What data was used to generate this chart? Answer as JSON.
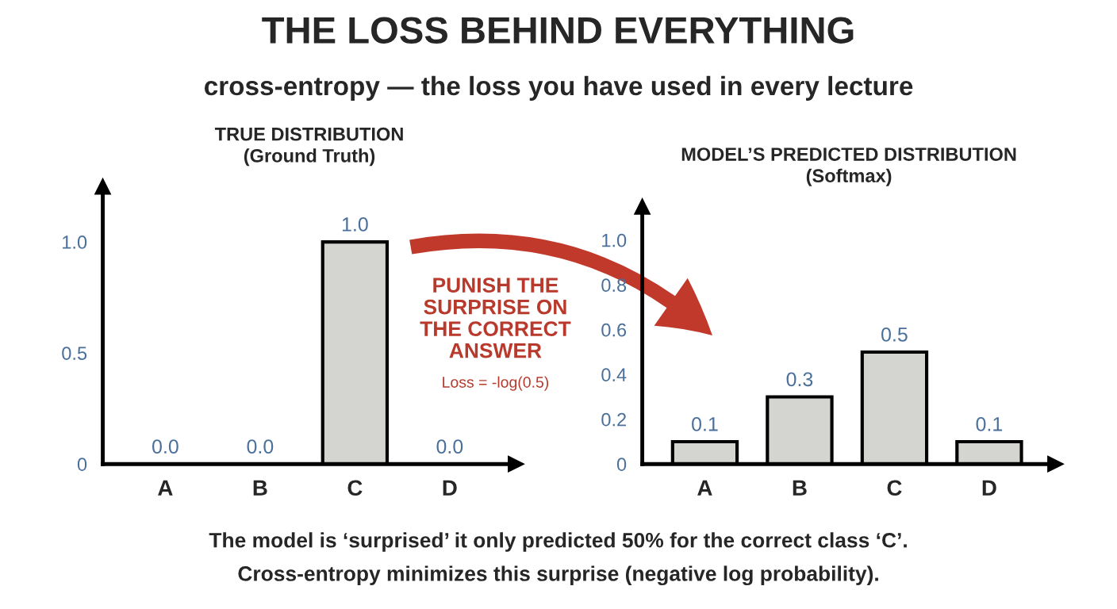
{
  "chart_data": [
    {
      "type": "other",
      "title": "THE LOSS BEHIND EVERYTHING",
      "subtitle": "cross-entropy — the loss you have used in every lecture",
      "annotations": [
        "The model is ‘surprised’ it only predicted 50% for the correct class ‘C’.",
        "Cross-entropy minimizes this surprise (negative log probability)."
      ]
    },
    {
      "type": "bar",
      "title": "TRUE DISTRIBUTION",
      "subtitle": "(Ground Truth)",
      "categories": [
        "A",
        "B",
        "C",
        "D"
      ],
      "values": [
        0,
        0,
        1,
        0
      ],
      "value_labels": [
        "0.0",
        "0.0",
        "1.0",
        "0.0"
      ],
      "color": "#d4d4d0",
      "ylim": [
        0,
        1.25
      ],
      "yticks": [
        0,
        0.5,
        {
          "value": 1,
          "label": "1.0"
        }
      ],
      "grid": false,
      "legend": false,
      "annotations": [
        "PUNISH THE\nSURPRISE ON\nTHE CORRECT\nANSWER",
        "Loss = -log(0.5)"
      ]
    },
    {
      "type": "bar",
      "title": "MODEL’S PREDICTED DISTRIBUTION",
      "subtitle": "(Softmax)",
      "categories": [
        "A",
        "B",
        "C",
        "D"
      ],
      "values": [
        0.1,
        0.3,
        0.5,
        0.1
      ],
      "value_labels": [
        "0.1",
        "0.3",
        "0.5",
        "0.1"
      ],
      "color": "#d4d4d0",
      "ylim": [
        0,
        1.15
      ],
      "yticks": [
        0,
        0.2,
        0.4,
        0.6,
        0.8,
        {
          "value": 1,
          "label": "1.0"
        }
      ],
      "grid": false,
      "legend": false
    }
  ]
}
